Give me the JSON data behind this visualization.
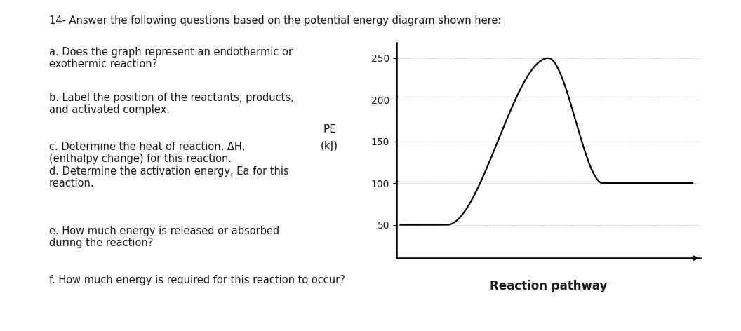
{
  "title_text": "14- Answer the following questions based on the potential energy diagram shown here:",
  "q_a": "a. Does the graph represent an endothermic or\nexothermic reaction?",
  "q_b": "b. Label the position of the reactants, products,\nand activated complex.",
  "q_c": "c. Determine the heat of reaction, ΔH,\n(enthalpy change) for this reaction.\nd. Determine the activation energy, Ea for this\nreaction.",
  "q_e": "e. How much energy is released or absorbed\nduring the reaction?",
  "q_f": "f. How much energy is required for this reaction to occur?",
  "pe_label_line1": "PE",
  "pe_label_line2": "(kJ)",
  "xlabel": "Reaction pathway",
  "yticks": [
    50,
    100,
    150,
    200,
    250
  ],
  "reactant_pe": 50,
  "product_pe": 100,
  "peak_pe": 250,
  "background_color": "#ffffff",
  "curve_color": "#000000",
  "grid_color": "#999999",
  "text_color": "#1a1a1a",
  "font_size_title": 10.5,
  "font_size_questions": 10.5,
  "font_size_axis_label": 11,
  "font_size_ticks": 10
}
